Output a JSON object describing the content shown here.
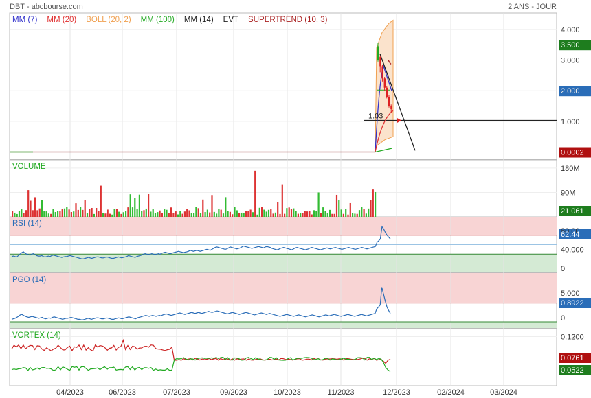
{
  "header": {
    "title": "DBT - abcbourse.com",
    "period": "2 ANS - JOUR"
  },
  "colors": {
    "mm7": "#3333cc",
    "mm20": "#e03030",
    "boll": "#f0a050",
    "mm100": "#22aa22",
    "mm14": "#222222",
    "evt": "#222222",
    "supertrend": "#aa2222",
    "up": "#22aa22",
    "down": "#dd2222",
    "rsi_line": "#2a6db8",
    "zone_high": "#f8d4d4",
    "zone_low": "#d4ead4",
    "badge_green": "#1e7d1e",
    "badge_blue": "#2a6db8",
    "badge_red": "#b01010",
    "badge_darkred": "#b01010"
  },
  "legend": [
    {
      "label": "MM (7)",
      "color": "#3333cc"
    },
    {
      "label": "MM (20)",
      "color": "#e03030"
    },
    {
      "label": "BOLL (20, 2)",
      "color": "#f0a050"
    },
    {
      "label": "MM (100)",
      "color": "#22aa22"
    },
    {
      "label": "MM (14)",
      "color": "#222222"
    },
    {
      "label": "EVT",
      "color": "#222222"
    },
    {
      "label": "SUPERTREND (10, 3)",
      "color": "#aa2222"
    }
  ],
  "chart_data": [
    {
      "type": "line",
      "name": "price",
      "y_ticks": [
        "4.000",
        "3.000",
        "2.000",
        "1.000"
      ],
      "ylim": [
        -0.1,
        4.4
      ],
      "x_labels": [
        "04/2023",
        "06/2023",
        "07/2023",
        "09/2023",
        "10/2023",
        "11/2023",
        "12/2023",
        "02/2024",
        "03/2024"
      ],
      "badges": [
        {
          "text": "3.500",
          "value": 3.5,
          "color": "#1e7d1e"
        },
        {
          "text": "2.000",
          "value": 2.0,
          "color": "#2a6db8"
        },
        {
          "text": "0.0002",
          "value": 0.0002,
          "color": "#b01010"
        }
      ],
      "hline": {
        "text": "1.03",
        "value": 1.03
      },
      "flat_value": 0.0002,
      "candles": [
        {
          "o": 3.0,
          "h": 3.55,
          "l": 2.95,
          "c": 3.45
        },
        {
          "o": 3.1,
          "h": 3.15,
          "l": 2.6,
          "c": 2.8
        },
        {
          "o": 2.8,
          "h": 2.85,
          "l": 2.3,
          "c": 2.4
        },
        {
          "o": 2.4,
          "h": 2.45,
          "l": 2.0,
          "c": 2.1
        },
        {
          "o": 2.1,
          "h": 2.15,
          "l": 1.75,
          "c": 1.8
        },
        {
          "o": 1.8,
          "h": 1.85,
          "l": 1.45,
          "c": 1.5
        },
        {
          "o": 1.5,
          "h": 1.55,
          "l": 1.3,
          "c": 1.4
        }
      ]
    },
    {
      "type": "bar",
      "name": "volume",
      "title": "VOLUME",
      "y_ticks": [
        "180M",
        "90M"
      ],
      "ylim": [
        0,
        200
      ],
      "badge": {
        "text": "21 061",
        "color": "#1e7d1e"
      }
    },
    {
      "type": "line",
      "name": "rsi",
      "title": "RSI (14)",
      "y_ticks": [
        "80.00",
        "40.000",
        "0"
      ],
      "ylim": [
        0,
        100
      ],
      "badge": {
        "text": "62.44",
        "color": "#2a6db8"
      },
      "values": [
        25,
        26,
        25,
        24,
        27,
        30,
        33,
        35,
        32,
        30,
        29,
        28,
        30,
        31,
        29,
        27,
        26,
        26,
        27,
        25,
        24,
        25,
        26,
        25,
        27,
        28,
        27,
        26,
        25,
        24,
        23,
        24,
        25,
        25,
        26,
        27,
        26,
        25,
        24,
        23,
        22,
        21,
        20,
        20,
        21,
        22,
        23,
        22,
        21,
        22,
        23,
        24,
        24,
        23,
        22,
        22,
        23,
        24,
        23,
        22,
        21,
        21,
        22,
        23,
        24,
        23,
        22,
        23,
        24,
        25,
        27,
        26,
        25,
        24,
        23,
        25,
        26,
        27,
        28,
        30,
        31,
        30,
        29,
        30,
        31,
        30,
        29,
        30,
        31,
        30,
        32,
        33,
        34,
        33,
        32,
        31,
        32,
        33,
        34,
        35,
        36,
        35,
        34,
        33,
        34,
        35,
        36,
        38,
        37,
        36,
        37,
        38,
        37,
        36,
        37,
        38,
        39,
        40,
        39,
        38,
        40,
        42,
        44,
        45,
        44,
        43,
        42,
        41,
        40,
        41,
        43,
        45,
        44,
        43,
        42,
        41,
        42,
        43,
        45,
        47,
        46,
        45,
        44,
        43,
        42,
        43,
        44,
        45,
        46,
        45,
        44,
        43,
        45,
        46,
        45,
        44,
        42,
        41,
        40,
        39,
        40,
        42,
        43,
        44,
        43,
        42,
        41,
        40,
        39,
        41,
        43,
        44,
        43,
        42,
        41,
        40,
        39,
        40,
        41,
        43,
        44,
        43,
        42,
        41,
        40,
        39,
        40,
        41,
        42,
        43,
        42,
        41,
        42,
        43,
        44,
        43,
        42,
        41,
        40,
        41,
        42,
        43,
        44,
        43,
        42,
        41,
        40,
        41,
        42,
        43,
        44,
        43,
        42,
        41,
        42,
        43,
        44,
        45,
        46,
        55,
        58,
        62,
        88,
        83,
        76,
        70,
        66,
        62
      ]
    },
    {
      "type": "line",
      "name": "pgo",
      "title": "PGO (14)",
      "y_ticks": [
        "5.000",
        "0"
      ],
      "ylim": [
        -1.5,
        8.5
      ],
      "badge": {
        "text": "0.8922",
        "color": "#2a6db8"
      },
      "values": [
        -0.3,
        -0.2,
        -0.1,
        0.1,
        0.3,
        0.6,
        0.7,
        0.5,
        0.3,
        0.2,
        0.1,
        0.2,
        0.3,
        0.2,
        0.1,
        0.0,
        -0.1,
        0.0,
        0.1,
        -0.1,
        -0.2,
        -0.1,
        0.0,
        -0.1,
        0.1,
        0.2,
        0.1,
        0.0,
        -0.1,
        -0.2,
        -0.3,
        -0.2,
        -0.1,
        -0.1,
        0.0,
        0.1,
        0.0,
        -0.1,
        -0.2,
        -0.3,
        -0.3,
        -0.4,
        -0.4,
        -0.3,
        -0.2,
        -0.1,
        -0.2,
        -0.3,
        -0.2,
        -0.1,
        0.0,
        0.0,
        -0.1,
        -0.2,
        -0.2,
        -0.1,
        0.0,
        -0.1,
        -0.2,
        -0.3,
        -0.3,
        -0.2,
        -0.1,
        0.0,
        -0.1,
        -0.2,
        -0.1,
        0.0,
        0.1,
        0.2,
        0.1,
        0.0,
        -0.1,
        -0.2,
        0.0,
        0.1,
        0.2,
        0.3,
        0.4,
        0.5,
        0.4,
        0.3,
        0.4,
        0.5,
        0.4,
        0.3,
        0.4,
        0.5,
        0.4,
        0.6,
        0.7,
        0.8,
        0.7,
        0.6,
        0.5,
        0.6,
        0.7,
        0.8,
        0.9,
        1.0,
        0.9,
        0.8,
        0.7,
        0.8,
        0.9,
        1.0,
        1.1,
        1.0,
        0.9,
        1.0,
        1.1,
        1.0,
        0.9,
        1.0,
        1.1,
        1.2,
        1.3,
        1.2,
        1.1,
        1.2,
        1.3,
        1.4,
        1.3,
        1.2,
        1.1,
        1.0,
        0.9,
        0.8,
        0.9,
        1.0,
        1.1,
        1.0,
        0.9,
        0.8,
        0.7,
        0.8,
        0.9,
        1.0,
        1.1,
        1.0,
        0.9,
        0.8,
        0.7,
        0.6,
        0.7,
        0.8,
        0.9,
        1.0,
        0.9,
        0.8,
        0.7,
        0.8,
        0.9,
        0.8,
        0.7,
        0.6,
        0.5,
        0.4,
        0.3,
        0.4,
        0.5,
        0.6,
        0.7,
        0.6,
        0.5,
        0.4,
        0.3,
        0.4,
        0.5,
        0.6,
        0.5,
        0.4,
        0.3,
        0.2,
        0.3,
        0.4,
        0.5,
        0.6,
        0.5,
        0.4,
        0.3,
        0.2,
        0.3,
        0.4,
        0.5,
        0.6,
        0.5,
        0.4,
        0.5,
        0.6,
        0.7,
        0.6,
        0.5,
        0.4,
        0.3,
        0.4,
        0.5,
        0.6,
        0.7,
        0.6,
        0.5,
        0.4,
        0.3,
        0.4,
        0.5,
        0.6,
        0.7,
        0.6,
        0.5,
        0.4,
        0.5,
        0.6,
        0.7,
        0.8,
        0.9,
        1.8,
        2.2,
        2.6,
        6.2,
        4.8,
        3.4,
        2.2,
        1.5,
        0.9
      ]
    },
    {
      "type": "line",
      "name": "vortex",
      "title": "VORTEX (14)",
      "y_ticks": [
        "0.1200"
      ],
      "ylim": [
        0.03,
        0.13
      ],
      "badges": [
        {
          "text": "0.0761",
          "color": "#b01010"
        },
        {
          "text": "0.0522",
          "color": "#1e7d1e"
        }
      ]
    }
  ]
}
